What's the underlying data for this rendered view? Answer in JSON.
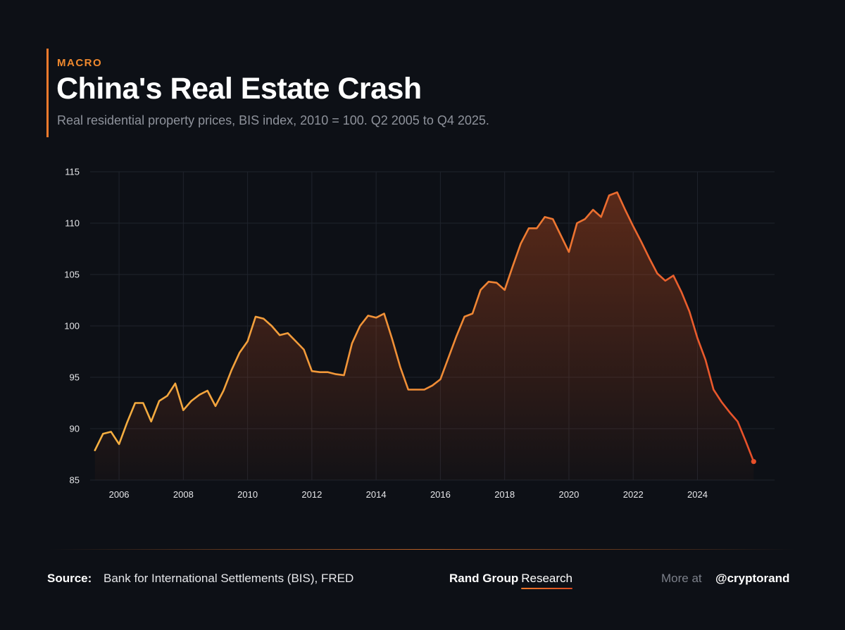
{
  "header": {
    "kicker": "MACRO",
    "title": "China's Real Estate Crash",
    "subtitle": "Real residential property prices, BIS index, 2010 = 100. Q2 2005 to Q4 2025."
  },
  "footer": {
    "source_label": "Source:",
    "source_text": "Bank for International Settlements (BIS), FRED",
    "brand_name": "Rand Group",
    "brand_sub": "Research",
    "more_label": "More at",
    "handle": "@cryptorand"
  },
  "colors": {
    "background": "#0d1016",
    "accent": "#f07a2c",
    "line_start": "#f5b041",
    "line_end": "#e8502a",
    "grid": "#1f232c",
    "tick_text": "#e6e7ea"
  },
  "chart_data": {
    "type": "area",
    "title": "China's Real Estate Crash",
    "xlabel": "",
    "ylabel": "",
    "ylim": [
      85,
      115
    ],
    "xlim": [
      2005.1,
      2026.4
    ],
    "grid": true,
    "yticks": [
      85,
      90,
      95,
      100,
      105,
      110,
      115
    ],
    "xticks": [
      2006,
      2008,
      2010,
      2012,
      2014,
      2016,
      2018,
      2020,
      2022,
      2024
    ],
    "series": [
      {
        "name": "Real residential property prices (BIS index, 2010 = 100)",
        "x": [
          2005.25,
          2005.5,
          2005.75,
          2006.0,
          2006.25,
          2006.5,
          2006.75,
          2007.0,
          2007.25,
          2007.5,
          2007.75,
          2008.0,
          2008.25,
          2008.5,
          2008.75,
          2009.0,
          2009.25,
          2009.5,
          2009.75,
          2010.0,
          2010.25,
          2010.5,
          2010.75,
          2011.0,
          2011.25,
          2011.5,
          2011.75,
          2012.0,
          2012.25,
          2012.5,
          2012.75,
          2013.0,
          2013.25,
          2013.5,
          2013.75,
          2014.0,
          2014.25,
          2014.5,
          2014.75,
          2015.0,
          2015.25,
          2015.5,
          2015.75,
          2016.0,
          2016.25,
          2016.5,
          2016.75,
          2017.0,
          2017.25,
          2017.5,
          2017.75,
          2018.0,
          2018.25,
          2018.5,
          2018.75,
          2019.0,
          2019.25,
          2019.5,
          2019.75,
          2020.0,
          2020.25,
          2020.5,
          2020.75,
          2021.0,
          2021.25,
          2021.5,
          2021.75,
          2022.0,
          2022.25,
          2022.5,
          2022.75,
          2023.0,
          2023.25,
          2023.5,
          2023.75,
          2024.0,
          2024.25,
          2024.5,
          2024.75,
          2025.0,
          2025.25,
          2025.5,
          2025.75
        ],
        "values": [
          87.9,
          89.5,
          89.7,
          88.5,
          90.6,
          92.5,
          92.5,
          90.7,
          92.7,
          93.2,
          94.4,
          91.8,
          92.7,
          93.3,
          93.7,
          92.2,
          93.7,
          95.7,
          97.4,
          98.5,
          100.9,
          100.7,
          100.0,
          99.1,
          99.3,
          98.5,
          97.7,
          95.6,
          95.5,
          95.5,
          95.3,
          95.2,
          98.3,
          100.0,
          101.0,
          100.8,
          101.2,
          98.7,
          96.0,
          93.8,
          93.8,
          93.8,
          94.2,
          94.8,
          96.9,
          99.0,
          100.9,
          101.2,
          103.5,
          104.3,
          104.2,
          103.5,
          105.8,
          108.0,
          109.5,
          109.5,
          110.6,
          110.4,
          108.8,
          107.2,
          110.0,
          110.4,
          111.3,
          110.6,
          112.7,
          113.0,
          111.3,
          109.7,
          108.2,
          106.6,
          105.1,
          104.4,
          104.9,
          103.3,
          101.4,
          98.8,
          96.7,
          93.8,
          92.6,
          91.6,
          90.7,
          88.8,
          86.8
        ]
      }
    ]
  }
}
